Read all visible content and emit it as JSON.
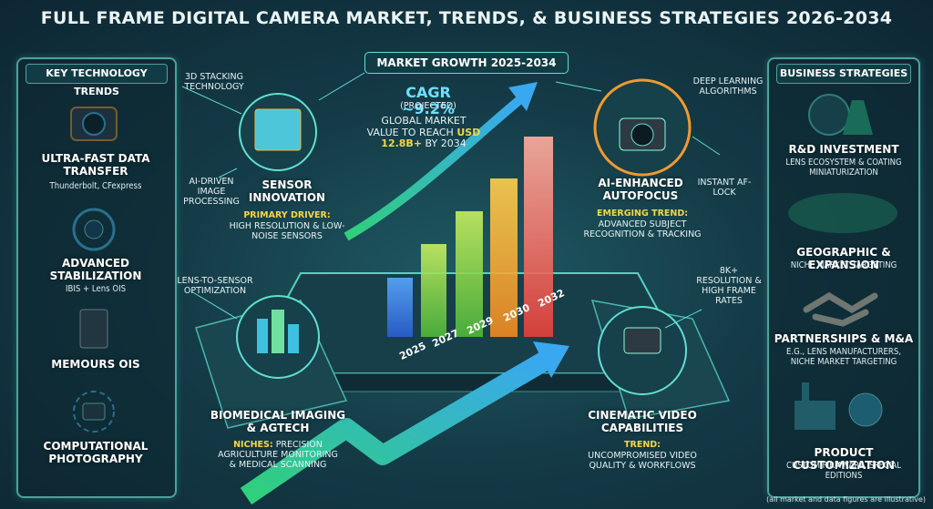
{
  "header": {
    "title": "FULL FRAME DIGITAL CAMERA MARKET, TRENDS, & BUSINESS STRATEGIES 2026-2034"
  },
  "left_panel": {
    "title": "KEY TECHNOLOGY TRENDS",
    "items": [
      {
        "title": "ULTRA-FAST DATA TRANSFER",
        "subtitle": "Thunderbolt, CFexpress"
      },
      {
        "title": "ADVANCED STABILIZATION",
        "subtitle": "IBIS + Lens OIS"
      },
      {
        "title": "MEMOURS OIS"
      },
      {
        "title": "COMPUTATIONAL PHOTOGRAPHY"
      }
    ]
  },
  "right_panel": {
    "title": "BUSINESS STRATEGIES",
    "items": [
      {
        "title": "R&D INVESTMENT",
        "subtitle": "LENS ECOSYSTEM & COATING MINIATURIZATION"
      },
      {
        "title": "GEOGRAPHIC & EXPANSION",
        "subtitle": "NICHE MARKET TARGETING"
      },
      {
        "title": "PARTNERSHIPS & M&A",
        "subtitle": "E.G., LENS MANUFACTURERS, NICHE MARKET TARGETING"
      },
      {
        "title": "PRODUCT CUSTOMIZATION",
        "subtitle": "CUSTOM FIRMWARE, SPECIAL EDITIONS"
      }
    ]
  },
  "market_growth": {
    "title": "MARKET GROWTH 2025-2034",
    "cagr": "CAGR ~9.2%",
    "cagr_note": "(PROJECTED)",
    "value_text": "GLOBAL MARKET VALUE TO REACH",
    "value_currency": "USD",
    "value_amount": "12.8B+",
    "value_suffix": "BY 2034",
    "years": [
      "2025",
      "2027",
      "2029",
      "2030",
      "2032"
    ]
  },
  "sensor": {
    "callout_top": "3D STACKING TECHNOLOGY",
    "callout_left": "AI-DRIVEN IMAGE PROCESSING",
    "title": "SENSOR INNOVATION",
    "label": "PRIMARY DRIVER:",
    "text": "HIGH RESOLUTION & LOW-NOISE SENSORS",
    "callout_bottom": "LENS-TO-SENSOR OPTIMIZATION"
  },
  "autofocus": {
    "callout_top": "DEEP LEARNING ALGORITHMS",
    "callout_right": "INSTANT AF-LOCK",
    "title": "AI-ENHANCED AUTOFOCUS",
    "label": "EMERGING TREND:",
    "text": "ADVANCED SUBJECT RECOGNITION & TRACKING"
  },
  "video": {
    "callout": "8K+ RESOLUTION & HIGH FRAME RATES",
    "title": "CINEMATIC VIDEO CAPABILITIES",
    "label": "TREND:",
    "text": "UNCOMPROMISED VIDEO QUALITY & WORKFLOWS"
  },
  "biomedical": {
    "title": "BIOMEDICAL IMAGING & AGTECH",
    "label": "NICHES:",
    "text": "PRECISION AGRICULTURE MONITORING & MEDICAL SCANNING"
  },
  "footnote": "(all market and data figures are illustrative)"
}
